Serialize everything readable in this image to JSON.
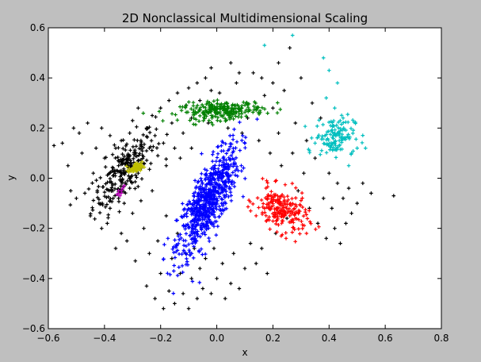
{
  "chart_data": {
    "type": "scatter",
    "title": "2D Nonclassical Multidimensional Scaling",
    "xlabel": "x",
    "ylabel": "y",
    "xlim": [
      -0.6,
      0.8
    ],
    "ylim": [
      -0.6,
      0.6
    ],
    "x_ticks": [
      -0.6,
      -0.4,
      -0.2,
      0.0,
      0.2,
      0.4,
      0.6,
      0.8
    ],
    "x_tick_labels": [
      "−0.6",
      "−0.4",
      "−0.2",
      "0.0",
      "0.2",
      "0.4",
      "0.6",
      "0.8"
    ],
    "y_ticks": [
      -0.6,
      -0.4,
      -0.2,
      0.0,
      0.2,
      0.4,
      0.6
    ],
    "y_tick_labels": [
      "−0.6",
      "−0.4",
      "−0.2",
      "0.0",
      "0.2",
      "0.4",
      "0.6"
    ],
    "grid": false,
    "legend": "none",
    "marker": "plus",
    "series": [
      {
        "color": "#000000",
        "points": [
          [
            -0.58,
            0.13
          ],
          [
            -0.55,
            0.14
          ],
          [
            -0.53,
            0.05
          ],
          [
            -0.52,
            -0.05
          ],
          [
            -0.51,
            0.2
          ],
          [
            -0.5,
            -0.08
          ],
          [
            -0.49,
            0.18
          ],
          [
            -0.48,
            0.1
          ],
          [
            -0.47,
            -0.06
          ],
          [
            -0.46,
            0.22
          ],
          [
            -0.45,
            -0.15
          ],
          [
            -0.44,
            0.02
          ],
          [
            -0.43,
            0.12
          ],
          [
            -0.42,
            -0.1
          ],
          [
            -0.41,
            0.2
          ],
          [
            -0.41,
            -0.2
          ],
          [
            -0.4,
            0.08
          ],
          [
            -0.39,
            -0.18
          ],
          [
            -0.38,
            0.17
          ],
          [
            -0.38,
            -0.12
          ],
          [
            -0.37,
            -0.05
          ],
          [
            -0.37,
            0.01
          ],
          [
            -0.36,
            -0.28
          ],
          [
            -0.36,
            0.12
          ],
          [
            -0.35,
            -0.08
          ],
          [
            -0.35,
            0.05
          ],
          [
            -0.34,
            -0.22
          ],
          [
            -0.34,
            0.15
          ],
          [
            -0.33,
            0.02
          ],
          [
            -0.33,
            -0.1
          ],
          [
            -0.32,
            0.08
          ],
          [
            -0.32,
            -0.25
          ],
          [
            -0.31,
            0.18
          ],
          [
            -0.31,
            -0.04
          ],
          [
            -0.3,
            0.23
          ],
          [
            -0.3,
            -0.14
          ],
          [
            -0.29,
            0.1
          ],
          [
            -0.29,
            -0.33
          ],
          [
            -0.28,
            0.02
          ],
          [
            -0.28,
            0.28
          ],
          [
            -0.27,
            -0.09
          ],
          [
            -0.27,
            0.15
          ],
          [
            -0.26,
            -0.2
          ],
          [
            -0.26,
            0.06
          ],
          [
            -0.25,
            0.2
          ],
          [
            -0.25,
            -0.43
          ],
          [
            -0.24,
            0.12
          ],
          [
            -0.24,
            -0.3
          ],
          [
            -0.23,
            0.25
          ],
          [
            -0.23,
            -0.05
          ],
          [
            -0.22,
            0.17
          ],
          [
            -0.22,
            -0.48
          ],
          [
            -0.21,
            0.09
          ],
          [
            -0.21,
            -0.25
          ],
          [
            -0.2,
            0.28
          ],
          [
            -0.2,
            -0.38
          ],
          [
            -0.19,
            0.14
          ],
          [
            -0.19,
            -0.52
          ],
          [
            -0.18,
            0.05
          ],
          [
            -0.18,
            -0.15
          ],
          [
            -0.17,
            0.31
          ],
          [
            -0.17,
            -0.45
          ],
          [
            -0.16,
            0.22
          ],
          [
            -0.16,
            -0.32
          ],
          [
            -0.15,
            0.12
          ],
          [
            -0.15,
            -0.5
          ],
          [
            -0.14,
            -0.22
          ],
          [
            -0.14,
            0.34
          ],
          [
            -0.13,
            -0.38
          ],
          [
            -0.12,
            0.18
          ],
          [
            -0.12,
            -0.46
          ],
          [
            -0.11,
            0.29
          ],
          [
            -0.11,
            -0.3
          ],
          [
            -0.1,
            0.36
          ],
          [
            -0.1,
            -0.52
          ],
          [
            -0.09,
            -0.4
          ],
          [
            -0.09,
            0.24
          ],
          [
            -0.08,
            -0.28
          ],
          [
            -0.07,
            0.38
          ],
          [
            -0.07,
            -0.48
          ],
          [
            -0.06,
            0.31
          ],
          [
            -0.06,
            -0.36
          ],
          [
            -0.05,
            -0.44
          ],
          [
            -0.04,
            0.4
          ],
          [
            -0.04,
            -0.32
          ],
          [
            -0.03,
            0.22
          ],
          [
            -0.02,
            -0.46
          ],
          [
            -0.02,
            0.35
          ],
          [
            -0.01,
            -0.28
          ],
          [
            0.0,
            -0.4
          ],
          [
            0.01,
            0.34
          ],
          [
            0.02,
            -0.34
          ],
          [
            0.03,
            -0.48
          ],
          [
            0.04,
            0.2
          ],
          [
            0.05,
            -0.42
          ],
          [
            0.06,
            -0.3
          ],
          [
            0.07,
            0.38
          ],
          [
            0.08,
            -0.44
          ],
          [
            0.09,
            0.18
          ],
          [
            0.1,
            -0.36
          ],
          [
            0.11,
            0.24
          ],
          [
            0.12,
            -0.26
          ],
          [
            0.13,
            0.42
          ],
          [
            0.14,
            -0.34
          ],
          [
            0.15,
            0.15
          ],
          [
            0.16,
            -0.28
          ],
          [
            0.17,
            0.33
          ],
          [
            0.18,
            -0.38
          ],
          [
            0.19,
            0.1
          ],
          [
            0.2,
            0.28
          ],
          [
            0.21,
            -0.22
          ],
          [
            0.22,
            0.18
          ],
          [
            0.23,
            0.05
          ],
          [
            0.24,
            0.35
          ],
          [
            0.25,
            -0.16
          ],
          [
            0.26,
            0.52
          ],
          [
            0.27,
            0.1
          ],
          [
            0.28,
            0.22
          ],
          [
            0.29,
            -0.05
          ],
          [
            0.3,
            0.4
          ],
          [
            0.31,
            0.02
          ],
          [
            0.32,
            0.15
          ],
          [
            0.33,
            -0.12
          ],
          [
            0.34,
            0.3
          ],
          [
            0.35,
            0.08
          ],
          [
            0.36,
            -0.18
          ],
          [
            0.37,
            0.24
          ],
          [
            0.38,
            -0.08
          ],
          [
            0.39,
            -0.24
          ],
          [
            0.4,
            0.02
          ],
          [
            0.41,
            -0.12
          ],
          [
            0.42,
            -0.2
          ],
          [
            0.43,
            -0.02
          ],
          [
            0.44,
            -0.26
          ],
          [
            0.45,
            -0.08
          ],
          [
            0.46,
            -0.18
          ],
          [
            0.47,
            -0.04
          ],
          [
            0.48,
            -0.14
          ],
          [
            0.5,
            -0.1
          ],
          [
            0.52,
            -0.02
          ],
          [
            0.55,
            -0.06
          ],
          [
            0.63,
            -0.07
          ],
          [
            0.05,
            0.46
          ],
          [
            -0.02,
            0.44
          ],
          [
            0.08,
            0.42
          ],
          [
            0.2,
            0.38
          ],
          [
            0.22,
            0.46
          ],
          [
            0.16,
            0.4
          ],
          [
            -0.13,
            0.08
          ],
          [
            -0.09,
            0.12
          ]
        ]
      },
      {
        "color": "#000000",
        "cluster": {
          "cx": -0.33,
          "cy": 0.03,
          "sx": 0.055,
          "sy": 0.08,
          "rho": 0.72,
          "n": 240
        }
      },
      {
        "color": "#0000ff",
        "cluster": {
          "cx": -0.03,
          "cy": -0.09,
          "sx": 0.055,
          "sy": 0.11,
          "rho": 0.78,
          "n": 700
        }
      },
      {
        "color": "#008000",
        "cluster": {
          "cx": 0.02,
          "cy": 0.27,
          "sx": 0.075,
          "sy": 0.018,
          "rho": 0.2,
          "n": 240
        }
      },
      {
        "color": "#ff0000",
        "cluster": {
          "cx": 0.23,
          "cy": -0.13,
          "sx": 0.045,
          "sy": 0.045,
          "rho": -0.35,
          "n": 220
        }
      },
      {
        "color": "#00bfbf",
        "cluster": {
          "cx": 0.42,
          "cy": 0.17,
          "sx": 0.035,
          "sy": 0.038,
          "rho": 0.1,
          "n": 130
        },
        "points": [
          [
            0.38,
            0.48
          ],
          [
            0.4,
            0.43
          ],
          [
            0.43,
            0.38
          ],
          [
            0.39,
            0.32
          ],
          [
            0.42,
            0.28
          ],
          [
            0.45,
            0.24
          ],
          [
            0.17,
            0.53
          ],
          [
            0.27,
            0.57
          ],
          [
            0.48,
            0.1
          ],
          [
            0.5,
            0.12
          ],
          [
            0.53,
            0.12
          ],
          [
            0.47,
            0.05
          ],
          [
            0.35,
            0.14
          ],
          [
            0.33,
            0.11
          ]
        ]
      },
      {
        "color": "#bfbf00",
        "cluster": {
          "cx": -0.29,
          "cy": 0.04,
          "sx": 0.012,
          "sy": 0.01,
          "rho": 0.3,
          "n": 60
        }
      },
      {
        "color": "#bf00bf",
        "points": [
          [
            -0.35,
            -0.06
          ],
          [
            -0.34,
            -0.05
          ],
          [
            -0.355,
            -0.065
          ],
          [
            -0.345,
            -0.07
          ],
          [
            -0.335,
            -0.04
          ],
          [
            -0.33,
            -0.03
          ],
          [
            -0.34,
            -0.06
          ],
          [
            -0.35,
            -0.05
          ]
        ]
      }
    ]
  }
}
